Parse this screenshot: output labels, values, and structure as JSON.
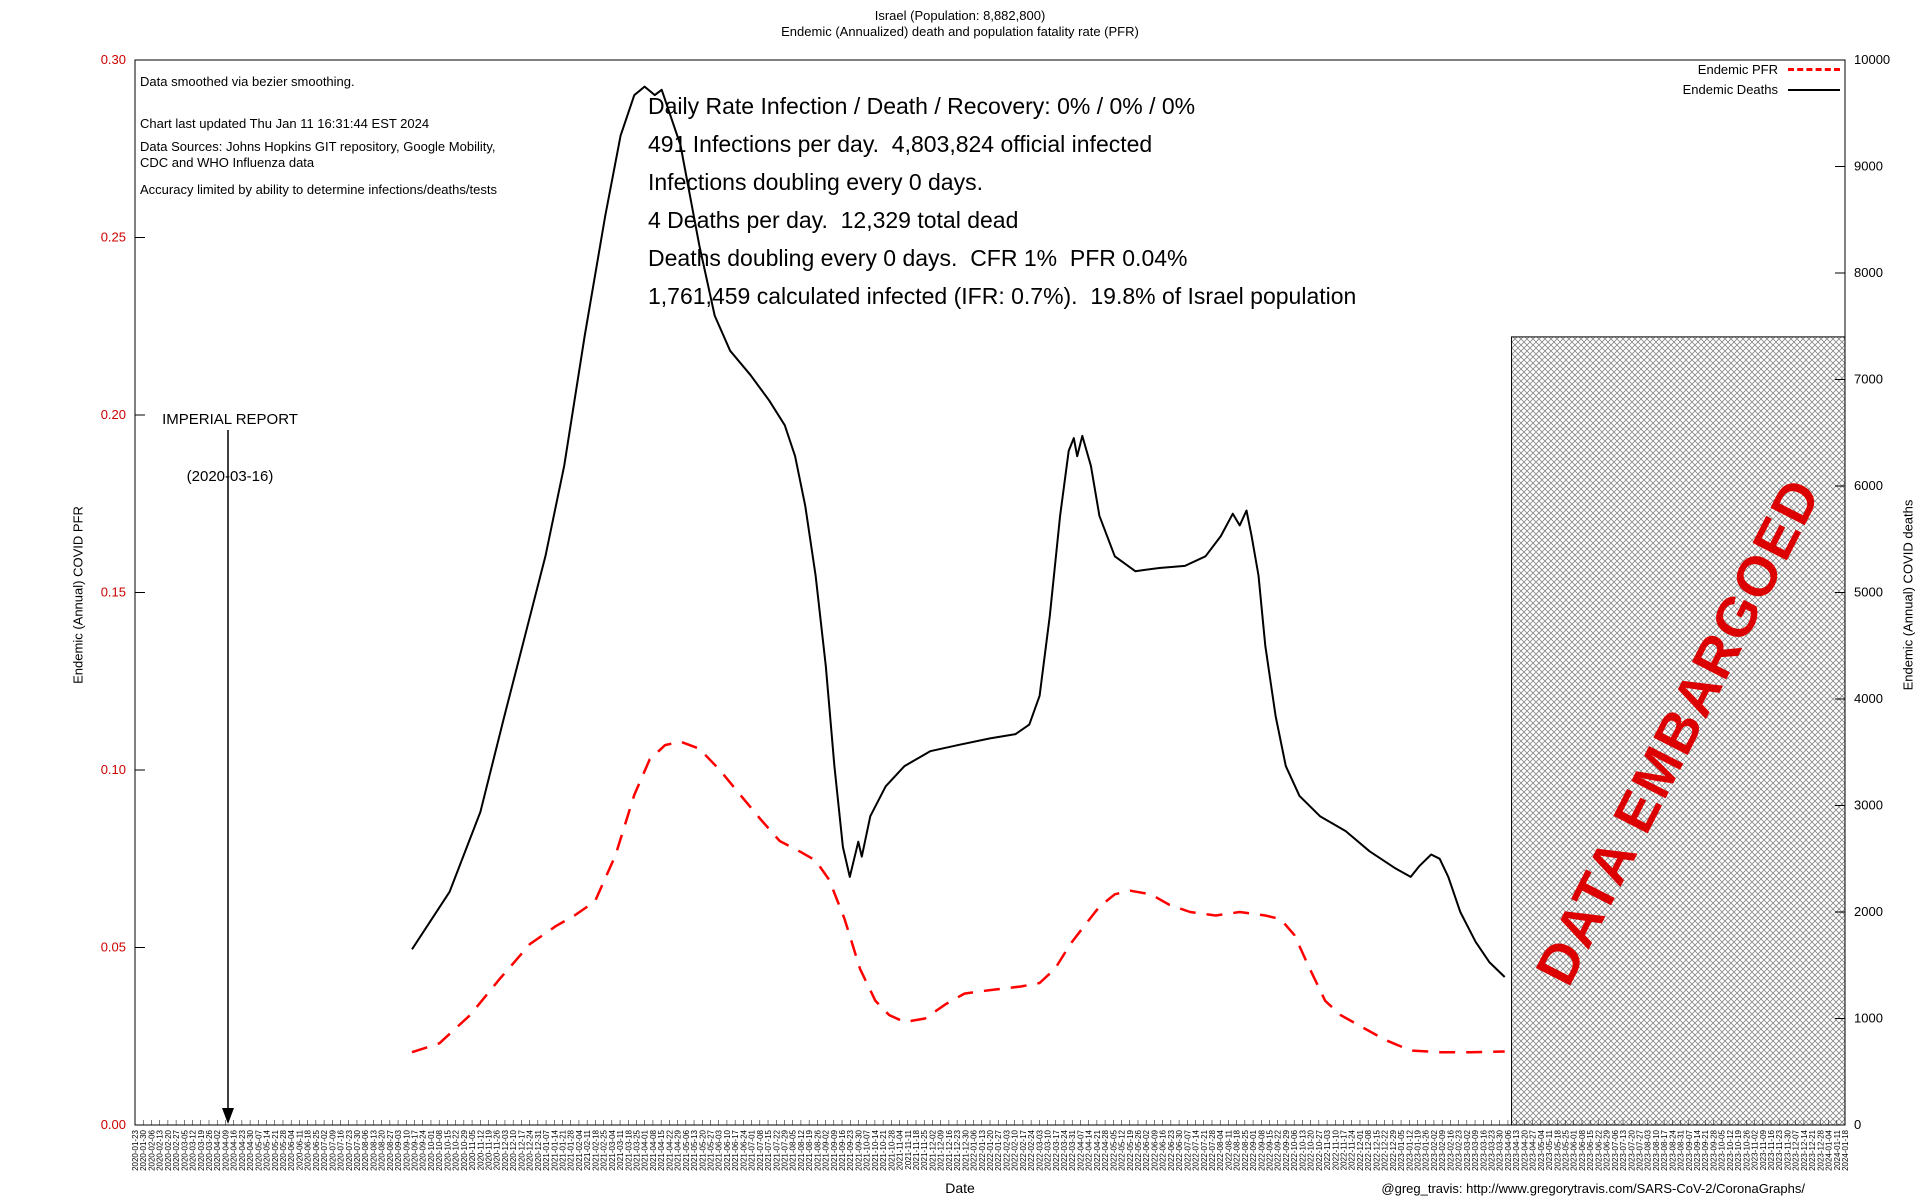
{
  "title": {
    "line1": "Israel (Population: 8,882,800)",
    "line2": "Endemic (Annualized) death and population fatality rate (PFR)"
  },
  "notes": {
    "smoothing": "Data smoothed via bezier smoothing.",
    "updated": "Chart last updated Thu Jan 11 16:31:44 EST 2024",
    "sources_line1": "Data Sources: Johns Hopkins GIT repository, Google Mobility,",
    "sources_line2": "CDC and WHO Influenza data",
    "accuracy": "Accuracy limited by ability to determine infections/deaths/tests"
  },
  "stats": {
    "line1": "Daily Rate Infection / Death / Recovery: 0% / 0% / 0%",
    "line2": "491 Infections per day.  4,803,824 official infected",
    "line3": "Infections doubling every 0 days.",
    "line4": "4 Deaths per day.  12,329 total dead",
    "line5": "Deaths doubling every 0 days.  CFR 1%  PFR 0.04%",
    "line6": "1,761,459 calculated infected (IFR: 0.7%).  19.8% of Israel population"
  },
  "imperial": {
    "line1": "IMPERIAL REPORT",
    "line2": "(2020-03-16)"
  },
  "legend": [
    {
      "label": "Endemic PFR",
      "style": "dashed",
      "color": "#ff0000"
    },
    {
      "label": "Endemic Deaths",
      "style": "solid",
      "color": "#000000"
    }
  ],
  "embargo": {
    "label": "DATA EMBARGOED",
    "color": "#dd0000"
  },
  "footer": {
    "xlabel": "Date",
    "credit": "@greg_travis: http://www.gregorytravis.com/SARS-CoV-2/CoronaGraphs/"
  },
  "colors": {
    "pfr_red": "#ff0000",
    "deaths_black": "#000000",
    "left_axis_text": "#cc0000",
    "embargo_text": "#dd0000",
    "hatch": "#888888"
  },
  "axes": {
    "left_label": "Endemic (Annual) COVID PFR",
    "right_label": "Endemic (Annual) COVID deaths",
    "left_ticks": [
      "0.00",
      "0.05",
      "0.10",
      "0.15",
      "0.20",
      "0.25",
      "0.30"
    ],
    "right_ticks": [
      "0",
      "1000",
      "2000",
      "3000",
      "4000",
      "5000",
      "6000",
      "7000",
      "8000",
      "9000",
      "10000"
    ],
    "x_ticks": {
      "start": "2020-01-23",
      "step_days": 7,
      "count": 209
    }
  },
  "chart_data": {
    "type": "line",
    "title": "Israel (Population: 8,882,800) — Endemic (Annualized) death and population fatality rate (PFR)",
    "xlabel": "Date",
    "x_range": [
      "2020-01-23",
      "2024-01-18"
    ],
    "x_units": "fraction of plot width (0..1)",
    "grid": false,
    "legend_position": "top-right",
    "y_left": {
      "label": "Endemic (Annual) COVID PFR",
      "range": [
        0,
        0.3
      ]
    },
    "y_right": {
      "label": "Endemic (Annual) COVID deaths",
      "range": [
        0,
        10000
      ]
    },
    "embargo_region": {
      "x_from_frac": 0.805,
      "x_to_frac": 1.0,
      "value_top_right_axis": 7400
    },
    "series": [
      {
        "name": "Endemic Deaths",
        "axis": "right",
        "color": "#000000",
        "style": "solid",
        "points": [
          [
            0.162,
            1650
          ],
          [
            0.184,
            2190
          ],
          [
            0.202,
            2940
          ],
          [
            0.216,
            3840
          ],
          [
            0.228,
            4590
          ],
          [
            0.24,
            5340
          ],
          [
            0.251,
            6190
          ],
          [
            0.263,
            7410
          ],
          [
            0.275,
            8540
          ],
          [
            0.284,
            9290
          ],
          [
            0.292,
            9670
          ],
          [
            0.298,
            9750
          ],
          [
            0.304,
            9670
          ],
          [
            0.308,
            9720
          ],
          [
            0.319,
            9200
          ],
          [
            0.33,
            8260
          ],
          [
            0.339,
            7600
          ],
          [
            0.348,
            7270
          ],
          [
            0.36,
            7040
          ],
          [
            0.371,
            6800
          ],
          [
            0.38,
            6570
          ],
          [
            0.386,
            6280
          ],
          [
            0.392,
            5810
          ],
          [
            0.398,
            5160
          ],
          [
            0.404,
            4310
          ],
          [
            0.409,
            3370
          ],
          [
            0.414,
            2610
          ],
          [
            0.418,
            2330
          ],
          [
            0.423,
            2660
          ],
          [
            0.425,
            2520
          ],
          [
            0.43,
            2900
          ],
          [
            0.439,
            3180
          ],
          [
            0.45,
            3370
          ],
          [
            0.465,
            3510
          ],
          [
            0.482,
            3570
          ],
          [
            0.5,
            3630
          ],
          [
            0.515,
            3670
          ],
          [
            0.523,
            3760
          ],
          [
            0.529,
            4030
          ],
          [
            0.535,
            4780
          ],
          [
            0.541,
            5720
          ],
          [
            0.546,
            6330
          ],
          [
            0.549,
            6450
          ],
          [
            0.551,
            6280
          ],
          [
            0.554,
            6470
          ],
          [
            0.559,
            6190
          ],
          [
            0.564,
            5720
          ],
          [
            0.573,
            5340
          ],
          [
            0.585,
            5200
          ],
          [
            0.599,
            5230
          ],
          [
            0.614,
            5250
          ],
          [
            0.626,
            5340
          ],
          [
            0.635,
            5530
          ],
          [
            0.642,
            5740
          ],
          [
            0.646,
            5630
          ],
          [
            0.65,
            5770
          ],
          [
            0.653,
            5530
          ],
          [
            0.657,
            5160
          ],
          [
            0.661,
            4500
          ],
          [
            0.667,
            3840
          ],
          [
            0.673,
            3370
          ],
          [
            0.681,
            3090
          ],
          [
            0.693,
            2900
          ],
          [
            0.708,
            2760
          ],
          [
            0.722,
            2570
          ],
          [
            0.737,
            2410
          ],
          [
            0.746,
            2330
          ],
          [
            0.751,
            2430
          ],
          [
            0.758,
            2540
          ],
          [
            0.763,
            2500
          ],
          [
            0.768,
            2330
          ],
          [
            0.775,
            2000
          ],
          [
            0.784,
            1720
          ],
          [
            0.792,
            1530
          ],
          [
            0.801,
            1390
          ]
        ]
      },
      {
        "name": "Endemic PFR",
        "axis": "left",
        "color": "#ff0000",
        "style": "dashed",
        "points": [
          [
            0.162,
            0.0205
          ],
          [
            0.178,
            0.023
          ],
          [
            0.196,
            0.031
          ],
          [
            0.213,
            0.041
          ],
          [
            0.231,
            0.051
          ],
          [
            0.246,
            0.056
          ],
          [
            0.257,
            0.059
          ],
          [
            0.269,
            0.063
          ],
          [
            0.281,
            0.076
          ],
          [
            0.292,
            0.093
          ],
          [
            0.301,
            0.103
          ],
          [
            0.31,
            0.107
          ],
          [
            0.319,
            0.108
          ],
          [
            0.33,
            0.106
          ],
          [
            0.342,
            0.1
          ],
          [
            0.354,
            0.093
          ],
          [
            0.366,
            0.086
          ],
          [
            0.377,
            0.08
          ],
          [
            0.389,
            0.077
          ],
          [
            0.398,
            0.0745
          ],
          [
            0.406,
            0.069
          ],
          [
            0.415,
            0.058
          ],
          [
            0.424,
            0.044
          ],
          [
            0.433,
            0.035
          ],
          [
            0.441,
            0.031
          ],
          [
            0.45,
            0.029
          ],
          [
            0.462,
            0.03
          ],
          [
            0.474,
            0.034
          ],
          [
            0.485,
            0.037
          ],
          [
            0.5,
            0.038
          ],
          [
            0.518,
            0.039
          ],
          [
            0.529,
            0.04
          ],
          [
            0.538,
            0.044
          ],
          [
            0.547,
            0.051
          ],
          [
            0.555,
            0.056
          ],
          [
            0.564,
            0.0615
          ],
          [
            0.573,
            0.065
          ],
          [
            0.582,
            0.066
          ],
          [
            0.594,
            0.065
          ],
          [
            0.605,
            0.062
          ],
          [
            0.617,
            0.06
          ],
          [
            0.632,
            0.059
          ],
          [
            0.646,
            0.06
          ],
          [
            0.661,
            0.059
          ],
          [
            0.67,
            0.058
          ],
          [
            0.678,
            0.0535
          ],
          [
            0.687,
            0.044
          ],
          [
            0.696,
            0.035
          ],
          [
            0.705,
            0.031
          ],
          [
            0.716,
            0.028
          ],
          [
            0.731,
            0.024
          ],
          [
            0.746,
            0.021
          ],
          [
            0.763,
            0.0205
          ],
          [
            0.781,
            0.0205
          ],
          [
            0.801,
            0.0207
          ]
        ]
      }
    ]
  }
}
